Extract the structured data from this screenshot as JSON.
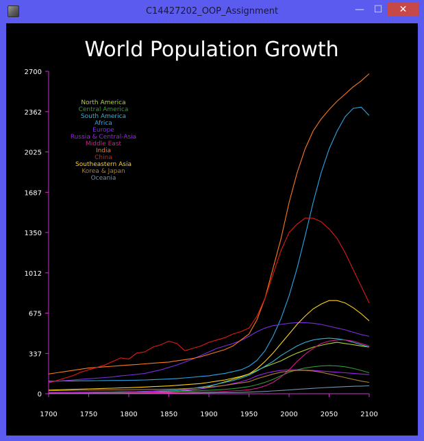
{
  "window": {
    "title": "C14427202_OOP_Assignment",
    "minimize_glyph": "—",
    "maximize_glyph": "☐",
    "close_glyph": "✕"
  },
  "colors": {
    "frame": "#5b5bf0",
    "canvas": "#000000",
    "axis": "#cc33cc",
    "text": "#ffffff"
  },
  "chart_data": {
    "type": "line",
    "title": "World Population Growth",
    "xlabel": "",
    "ylabel": "",
    "xlim": [
      1700,
      2100
    ],
    "ylim": [
      0,
      2700
    ],
    "x_ticks": [
      1700,
      1750,
      1800,
      1850,
      1900,
      1950,
      2000,
      2050,
      2100
    ],
    "y_ticks": [
      0,
      337,
      675,
      1012,
      1350,
      1687,
      2025,
      2362,
      2700
    ],
    "legend_position": "top-left",
    "grid": false,
    "x": [
      1700,
      1710,
      1720,
      1730,
      1740,
      1750,
      1760,
      1770,
      1780,
      1790,
      1800,
      1810,
      1820,
      1830,
      1840,
      1850,
      1860,
      1870,
      1880,
      1890,
      1900,
      1910,
      1920,
      1930,
      1940,
      1950,
      1960,
      1970,
      1980,
      1990,
      2000,
      2010,
      2020,
      2030,
      2040,
      2050,
      2060,
      2070,
      2080,
      2090,
      2100
    ],
    "series": [
      {
        "name": "North America",
        "color": "#b5d42a",
        "values": [
          2,
          2,
          2,
          2,
          3,
          3,
          3,
          3,
          4,
          4,
          5,
          6,
          7,
          9,
          11,
          14,
          18,
          24,
          32,
          40,
          60,
          80,
          100,
          120,
          140,
          165,
          195,
          225,
          250,
          275,
          310,
          340,
          365,
          390,
          405,
          420,
          430,
          420,
          410,
          400,
          390
        ]
      },
      {
        "name": "Central America",
        "color": "#2e9e2e",
        "values": [
          10,
          10,
          10,
          10,
          10,
          11,
          11,
          11,
          12,
          12,
          13,
          14,
          15,
          16,
          17,
          18,
          19,
          20,
          22,
          25,
          28,
          32,
          36,
          42,
          50,
          60,
          75,
          95,
          120,
          150,
          180,
          200,
          215,
          225,
          232,
          235,
          232,
          225,
          212,
          195,
          175
        ]
      },
      {
        "name": "South America",
        "color": "#33b2d6",
        "values": [
          10,
          10,
          11,
          11,
          12,
          12,
          13,
          14,
          15,
          16,
          17,
          18,
          20,
          22,
          25,
          28,
          32,
          38,
          45,
          55,
          65,
          80,
          95,
          110,
          130,
          155,
          190,
          230,
          270,
          320,
          360,
          400,
          430,
          450,
          460,
          465,
          460,
          450,
          430,
          410,
          390
        ]
      },
      {
        "name": "Africa",
        "color": "#2aa8e8",
        "values": [
          105,
          105,
          106,
          107,
          108,
          108,
          109,
          110,
          111,
          111,
          112,
          113,
          115,
          117,
          120,
          123,
          127,
          132,
          138,
          145,
          150,
          160,
          170,
          185,
          200,
          230,
          280,
          360,
          480,
          630,
          820,
          1050,
          1320,
          1600,
          1850,
          2050,
          2200,
          2320,
          2390,
          2400,
          2330
        ]
      },
      {
        "name": "Europe",
        "color": "#7a2ee0",
        "values": [
          100,
          105,
          110,
          115,
          120,
          125,
          130,
          135,
          140,
          150,
          155,
          162,
          170,
          185,
          200,
          220,
          240,
          265,
          290,
          320,
          350,
          380,
          400,
          420,
          445,
          480,
          520,
          550,
          570,
          580,
          590,
          595,
          595,
          590,
          580,
          565,
          550,
          535,
          515,
          495,
          480
        ]
      },
      {
        "name": "Russia & Central-Asia",
        "color": "#a020f0",
        "values": [
          10,
          10,
          11,
          11,
          12,
          12,
          13,
          13,
          14,
          15,
          16,
          17,
          18,
          20,
          22,
          24,
          26,
          30,
          34,
          40,
          50,
          60,
          70,
          85,
          100,
          120,
          150,
          170,
          185,
          195,
          200,
          200,
          198,
          195,
          190,
          185,
          180,
          175,
          170,
          165,
          160
        ]
      },
      {
        "name": "Middle East",
        "color": "#d81b8c",
        "values": [
          5,
          5,
          5,
          5,
          5,
          6,
          6,
          6,
          6,
          6,
          7,
          7,
          7,
          8,
          8,
          9,
          10,
          11,
          12,
          13,
          15,
          17,
          20,
          23,
          27,
          33,
          45,
          65,
          95,
          140,
          200,
          270,
          330,
          380,
          420,
          440,
          450,
          450,
          440,
          420,
          400
        ]
      },
      {
        "name": "India",
        "color": "#ff7a1a",
        "values": [
          165,
          175,
          185,
          195,
          205,
          215,
          220,
          225,
          230,
          235,
          240,
          245,
          250,
          255,
          260,
          265,
          275,
          285,
          295,
          310,
          330,
          350,
          370,
          400,
          450,
          500,
          620,
          800,
          1050,
          1300,
          1600,
          1850,
          2050,
          2200,
          2300,
          2380,
          2450,
          2510,
          2570,
          2620,
          2680
        ]
      },
      {
        "name": "China",
        "color": "#e01a1a",
        "values": [
          90,
          110,
          130,
          150,
          180,
          200,
          220,
          240,
          270,
          300,
          290,
          340,
          350,
          390,
          410,
          440,
          420,
          360,
          380,
          400,
          430,
          450,
          470,
          500,
          520,
          550,
          650,
          800,
          1000,
          1200,
          1350,
          1420,
          1470,
          1470,
          1440,
          1380,
          1300,
          1180,
          1040,
          900,
          760
        ]
      },
      {
        "name": "Southeastern Asia",
        "color": "#ffd21a",
        "values": [
          30,
          32,
          34,
          36,
          38,
          40,
          42,
          44,
          46,
          48,
          50,
          53,
          56,
          59,
          62,
          65,
          70,
          75,
          80,
          85,
          95,
          105,
          115,
          130,
          145,
          165,
          210,
          270,
          340,
          420,
          500,
          580,
          650,
          710,
          750,
          780,
          780,
          760,
          720,
          670,
          610
        ]
      },
      {
        "name": "Korea & Japan",
        "color": "#b08030",
        "values": [
          25,
          26,
          27,
          28,
          29,
          30,
          31,
          31,
          32,
          32,
          33,
          34,
          35,
          36,
          37,
          38,
          40,
          43,
          46,
          50,
          55,
          62,
          70,
          80,
          90,
          100,
          125,
          145,
          165,
          180,
          190,
          195,
          195,
          190,
          180,
          165,
          150,
          135,
          120,
          105,
          95
        ]
      },
      {
        "name": "Oceania",
        "color": "#7890a8",
        "values": [
          1,
          1,
          1,
          1,
          1,
          1,
          1,
          1,
          1,
          1,
          1,
          1,
          2,
          2,
          2,
          3,
          3,
          4,
          5,
          6,
          7,
          8,
          9,
          10,
          11,
          13,
          16,
          19,
          23,
          27,
          31,
          36,
          41,
          45,
          49,
          53,
          56,
          59,
          62,
          64,
          66
        ]
      }
    ]
  }
}
